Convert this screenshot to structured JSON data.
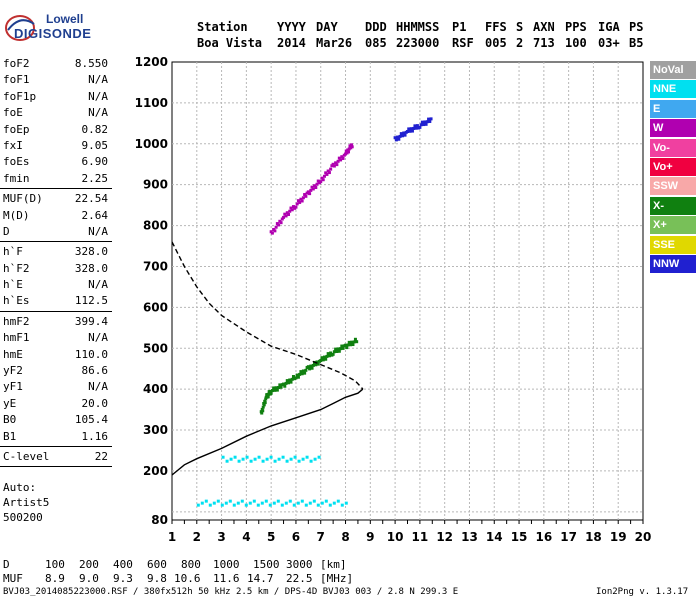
{
  "logo": {
    "line1": "Lowell",
    "line2": "DIGISONDE"
  },
  "header": {
    "labels": [
      "Station",
      "YYYY",
      "DAY",
      "DDD",
      "HHMMSS",
      "P1",
      "FFS",
      "S",
      "AXN",
      "PPS",
      "IGA",
      "PS"
    ],
    "values": [
      "Boa Vista",
      "2014",
      "Mar26",
      "085",
      "223000",
      "RSF",
      "005",
      "2",
      "713",
      "100",
      "03+",
      "B5"
    ]
  },
  "params_group1": [
    {
      "label": "foF2",
      "value": "8.550"
    },
    {
      "label": "foF1",
      "value": "N/A"
    },
    {
      "label": "foF1p",
      "value": "N/A"
    },
    {
      "label": "foE",
      "value": "N/A"
    },
    {
      "label": "foEp",
      "value": "0.82"
    },
    {
      "label": "fxI",
      "value": "9.05"
    },
    {
      "label": "foEs",
      "value": "6.90"
    },
    {
      "label": "fmin",
      "value": "2.25"
    }
  ],
  "params_group2": [
    {
      "label": "MUF(D)",
      "value": "22.54"
    },
    {
      "label": "M(D)",
      "value": "2.64"
    },
    {
      "label": "D",
      "value": "N/A"
    }
  ],
  "params_group3": [
    {
      "label": "h`F",
      "value": "328.0"
    },
    {
      "label": "h`F2",
      "value": "328.0"
    },
    {
      "label": "h`E",
      "value": "N/A"
    },
    {
      "label": "h`Es",
      "value": "112.5"
    }
  ],
  "params_group4": [
    {
      "label": "hmF2",
      "value": "399.4"
    },
    {
      "label": "hmF1",
      "value": "N/A"
    },
    {
      "label": "hmE",
      "value": "110.0"
    },
    {
      "label": "yF2",
      "value": "86.6"
    },
    {
      "label": "yF1",
      "value": "N/A"
    },
    {
      "label": "yE",
      "value": "20.0"
    },
    {
      "label": "B0",
      "value": "105.4"
    },
    {
      "label": "B1",
      "value": "1.16"
    }
  ],
  "params_group5": [
    {
      "label": "C-level",
      "value": "22"
    }
  ],
  "auto_info": [
    "Auto:",
    "Artist5",
    "500200"
  ],
  "legend": [
    {
      "label": "NoVal",
      "color": "#a0a0a0"
    },
    {
      "label": "NNE",
      "color": "#00e0f0"
    },
    {
      "label": "E",
      "color": "#40a8f0"
    },
    {
      "label": "W",
      "color": "#b000b0"
    },
    {
      "label": "Vo-",
      "color": "#f040a0"
    },
    {
      "label": "Vo+",
      "color": "#f00040"
    },
    {
      "label": "SSW",
      "color": "#f8a8a8"
    },
    {
      "label": "X-",
      "color": "#108010"
    },
    {
      "label": "X+",
      "color": "#78c058"
    },
    {
      "label": "SSE",
      "color": "#e0d800"
    },
    {
      "label": "NNW",
      "color": "#2020d0"
    }
  ],
  "footer": {
    "d_label": "D",
    "d_values": [
      "100",
      "200",
      "400",
      "600",
      "800",
      "1000",
      "1500",
      "3000",
      "[km]"
    ],
    "muf_label": "MUF",
    "muf_values": [
      "8.9",
      "9.0",
      "9.3",
      "9.8",
      "10.6",
      "11.6",
      "14.7",
      "22.5",
      "[MHz]"
    ],
    "file_info": "BVJ03_2014085223000.RSF / 380fx512h 50 kHz 2.5 km / DPS-4D BVJ03 003 / 2.8 N 299.3 E",
    "version": "Ion2Png v. 1.3.17"
  },
  "chart_data": {
    "type": "scatter",
    "xlabel": "",
    "ylabel": "",
    "xlim": [
      1,
      20
    ],
    "ylim": [
      80,
      1200
    ],
    "xticks": [
      1,
      2,
      3,
      4,
      5,
      6,
      7,
      8,
      9,
      10,
      11,
      12,
      13,
      14,
      15,
      16,
      17,
      18,
      19,
      20
    ],
    "yticks": [
      80,
      100,
      200,
      300,
      400,
      500,
      600,
      700,
      800,
      900,
      1000,
      1100,
      1200
    ],
    "ytick_labels": [
      "80",
      "",
      "200",
      "300",
      "400",
      "500",
      "600",
      "700",
      "800",
      "900",
      "1000",
      "1100",
      "1200"
    ],
    "grid": true,
    "series": [
      {
        "name": "",
        "style": "solid",
        "color": "#000000",
        "x": [
          1.0,
          1.5,
          2.0,
          3.0,
          4.0,
          5.0,
          6.0,
          7.0,
          7.5,
          8.0,
          8.5,
          8.7
        ],
        "y": [
          190,
          215,
          230,
          255,
          285,
          310,
          330,
          350,
          365,
          380,
          390,
          400
        ]
      },
      {
        "name": "",
        "style": "dashed",
        "color": "#000000",
        "x": [
          1.0,
          1.5,
          2.0,
          2.5,
          3.0,
          3.5,
          4.0,
          5.0,
          6.0,
          7.0,
          7.8,
          8.4,
          8.7
        ],
        "y": [
          760,
          700,
          650,
          610,
          580,
          560,
          540,
          505,
          485,
          460,
          440,
          420,
          400
        ]
      },
      {
        "name": "X-",
        "style": "trace",
        "color": "#108010",
        "x": [
          4.6,
          4.8,
          5.0,
          5.5,
          6.0,
          6.5,
          7.0,
          7.5,
          8.0,
          8.5
        ],
        "y": [
          340,
          380,
          395,
          410,
          430,
          450,
          470,
          490,
          505,
          520
        ]
      },
      {
        "name": "W",
        "style": "trace",
        "color": "#b000b0",
        "x": [
          5.0,
          5.5,
          6.0,
          6.5,
          7.0,
          7.5,
          8.0,
          8.3
        ],
        "y": [
          780,
          820,
          850,
          880,
          910,
          945,
          975,
          1000
        ]
      },
      {
        "name": "NNE",
        "style": "band",
        "color": "#00e0f0",
        "x": [
          3.0,
          4.0,
          5.0,
          6.0,
          7.0
        ],
        "y": [
          225,
          225,
          225,
          225,
          225
        ]
      },
      {
        "name": "NNE",
        "style": "band",
        "color": "#00e0f0",
        "x": [
          2.0,
          3.0,
          4.0,
          5.0,
          6.0,
          7.0,
          8.0
        ],
        "y": [
          120,
          120,
          120,
          120,
          120,
          120,
          120
        ]
      },
      {
        "name": "NNW",
        "style": "trace",
        "color": "#2020d0",
        "x": [
          10.0,
          10.5,
          11.0,
          11.5
        ],
        "y": [
          1010,
          1030,
          1045,
          1060
        ]
      }
    ]
  }
}
